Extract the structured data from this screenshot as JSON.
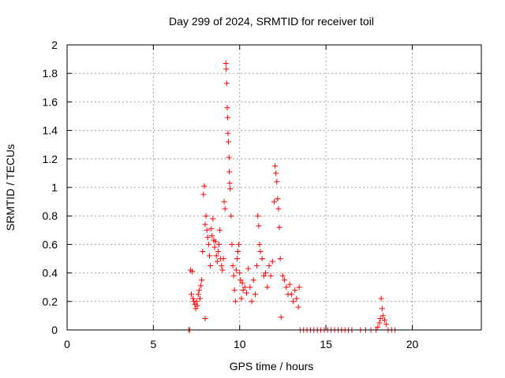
{
  "chart_data": {
    "type": "scatter",
    "title": "Day 299 of 2024, SRMTID for receiver toil",
    "xlabel": "GPS time / hours",
    "ylabel": "SRMTID / TECUs",
    "xlim": [
      0,
      24
    ],
    "ylim": [
      0,
      2
    ],
    "x_ticks": [
      0,
      5,
      10,
      15,
      20
    ],
    "x_tick_labels": [
      "0",
      "5",
      "10",
      "15",
      "20"
    ],
    "y_ticks": [
      0,
      0.2,
      0.4,
      0.6,
      0.8,
      1,
      1.2,
      1.4,
      1.6,
      1.8,
      2
    ],
    "y_tick_labels": [
      "0",
      "0.2",
      "0.4",
      "0.6",
      "0.8",
      "1",
      "1.2",
      "1.4",
      "1.6",
      "1.8",
      "2"
    ],
    "grid": true,
    "marker": "plus",
    "series_color": "#ff0000",
    "series": [
      {
        "name": "SRMTID",
        "points": [
          [
            7.05,
            0.0
          ],
          [
            7.1,
            0.0
          ],
          [
            7.15,
            0.42
          ],
          [
            7.2,
            0.25
          ],
          [
            7.25,
            0.41
          ],
          [
            7.3,
            0.22
          ],
          [
            7.35,
            0.2
          ],
          [
            7.4,
            0.18
          ],
          [
            7.45,
            0.15
          ],
          [
            7.5,
            0.2
          ],
          [
            7.55,
            0.17
          ],
          [
            7.6,
            0.25
          ],
          [
            7.65,
            0.28
          ],
          [
            7.7,
            0.22
          ],
          [
            7.75,
            0.31
          ],
          [
            7.8,
            0.35
          ],
          [
            7.85,
            0.55
          ],
          [
            7.9,
            0.95
          ],
          [
            7.95,
            1.01
          ],
          [
            8.0,
            0.08
          ],
          [
            8.0,
            0.74
          ],
          [
            8.05,
            0.8
          ],
          [
            8.1,
            0.7
          ],
          [
            8.15,
            0.65
          ],
          [
            8.2,
            0.6
          ],
          [
            8.25,
            0.52
          ],
          [
            8.3,
            0.45
          ],
          [
            8.35,
            0.71
          ],
          [
            8.4,
            0.66
          ],
          [
            8.45,
            0.78
          ],
          [
            8.5,
            0.63
          ],
          [
            8.55,
            0.58
          ],
          [
            8.6,
            0.62
          ],
          [
            8.65,
            0.52
          ],
          [
            8.7,
            0.48
          ],
          [
            8.75,
            0.55
          ],
          [
            8.8,
            0.6
          ],
          [
            8.85,
            0.7
          ],
          [
            8.9,
            0.5
          ],
          [
            8.95,
            0.45
          ],
          [
            9.0,
            0.42
          ],
          [
            9.05,
            0.5
          ],
          [
            9.1,
            0.9
          ],
          [
            9.15,
            0.85
          ],
          [
            9.2,
            1.87
          ],
          [
            9.22,
            1.83
          ],
          [
            9.25,
            1.73
          ],
          [
            9.28,
            1.56
          ],
          [
            9.3,
            1.49
          ],
          [
            9.32,
            1.38
          ],
          [
            9.35,
            1.32
          ],
          [
            9.38,
            1.21
          ],
          [
            9.4,
            1.11
          ],
          [
            9.42,
            1.03
          ],
          [
            9.45,
            0.99
          ],
          [
            9.5,
            0.8
          ],
          [
            9.55,
            0.6
          ],
          [
            9.6,
            0.45
          ],
          [
            9.65,
            0.38
          ],
          [
            9.7,
            0.28
          ],
          [
            9.75,
            0.2
          ],
          [
            9.8,
            0.42
          ],
          [
            9.85,
            0.5
          ],
          [
            9.9,
            0.55
          ],
          [
            9.95,
            0.6
          ],
          [
            10.0,
            0.4
          ],
          [
            10.05,
            0.35
          ],
          [
            10.1,
            0.22
          ],
          [
            10.15,
            0.33
          ],
          [
            10.2,
            0.28
          ],
          [
            10.3,
            0.3
          ],
          [
            10.4,
            0.26
          ],
          [
            10.5,
            0.43
          ],
          [
            10.6,
            0.3
          ],
          [
            10.7,
            0.2
          ],
          [
            10.8,
            0.35
          ],
          [
            10.9,
            0.25
          ],
          [
            11.0,
            0.45
          ],
          [
            11.05,
            0.8
          ],
          [
            11.1,
            0.73
          ],
          [
            11.15,
            0.6
          ],
          [
            11.2,
            0.55
          ],
          [
            11.3,
            0.5
          ],
          [
            11.4,
            0.38
          ],
          [
            11.5,
            0.4
          ],
          [
            11.6,
            0.3
          ],
          [
            11.7,
            0.45
          ],
          [
            11.8,
            0.38
          ],
          [
            11.9,
            0.48
          ],
          [
            12.0,
            0.9
          ],
          [
            12.05,
            1.15
          ],
          [
            12.1,
            1.1
          ],
          [
            12.15,
            1.04
          ],
          [
            12.2,
            0.92
          ],
          [
            12.25,
            0.85
          ],
          [
            12.3,
            0.72
          ],
          [
            12.35,
            0.5
          ],
          [
            12.4,
            0.09
          ],
          [
            12.5,
            0.38
          ],
          [
            12.6,
            0.35
          ],
          [
            12.7,
            0.3
          ],
          [
            12.8,
            0.25
          ],
          [
            12.9,
            0.32
          ],
          [
            13.0,
            0.25
          ],
          [
            13.1,
            0.2
          ],
          [
            13.2,
            0.28
          ],
          [
            13.3,
            0.22
          ],
          [
            13.4,
            0.16
          ],
          [
            13.45,
            0.3
          ],
          [
            13.5,
            0.0
          ],
          [
            13.7,
            0.0
          ],
          [
            13.9,
            0.0
          ],
          [
            14.1,
            0.0
          ],
          [
            14.3,
            0.0
          ],
          [
            14.5,
            0.0
          ],
          [
            14.7,
            0.0
          ],
          [
            14.9,
            0.0
          ],
          [
            15.1,
            0.0
          ],
          [
            15.3,
            0.0
          ],
          [
            15.5,
            0.0
          ],
          [
            15.7,
            0.0
          ],
          [
            15.9,
            0.0
          ],
          [
            16.1,
            0.0
          ],
          [
            16.3,
            0.0
          ],
          [
            16.5,
            0.0
          ],
          [
            17.0,
            0.0
          ],
          [
            17.3,
            0.0
          ],
          [
            17.6,
            0.0
          ],
          [
            17.9,
            0.0
          ],
          [
            18.0,
            0.02
          ],
          [
            18.1,
            0.05
          ],
          [
            18.15,
            0.08
          ],
          [
            18.2,
            0.22
          ],
          [
            18.25,
            0.15
          ],
          [
            18.3,
            0.1
          ],
          [
            18.4,
            0.07
          ],
          [
            18.5,
            0.04
          ],
          [
            18.6,
            0.0
          ],
          [
            18.8,
            0.0
          ],
          [
            19.0,
            0.0
          ]
        ]
      }
    ]
  }
}
